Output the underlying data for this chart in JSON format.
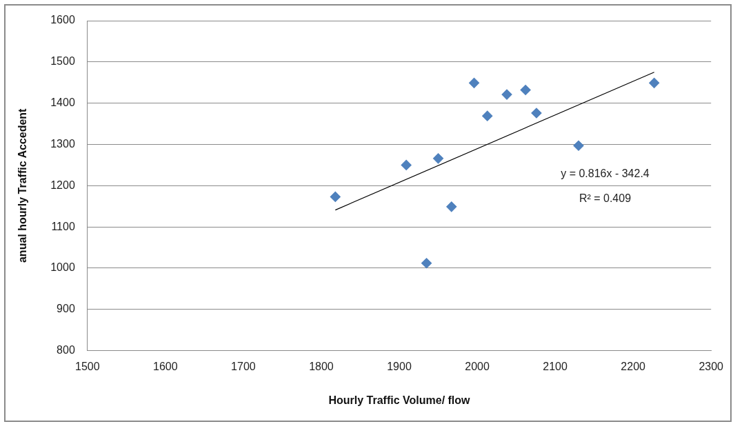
{
  "chart_data": {
    "type": "scatter",
    "xlabel": "Hourly Traffic Volume/ flow",
    "ylabel": "anual hourly Traffic Accedent",
    "xlim": [
      1500,
      2300
    ],
    "xticks": [
      1500,
      1600,
      1700,
      1800,
      1900,
      2000,
      2100,
      2200,
      2300
    ],
    "ylim": [
      800,
      1600
    ],
    "yticks": [
      800,
      900,
      1000,
      1100,
      1200,
      1300,
      1400,
      1500,
      1600
    ],
    "grid": "y",
    "legend": false,
    "marker": "diamond",
    "series": [
      {
        "color": "#4f81bd",
        "x": [
          1818,
          1909,
          1935,
          1950,
          1967,
          1996,
          2013,
          2038,
          2062,
          2076,
          2130,
          2227
        ],
        "values": [
          1173,
          1250,
          1012,
          1266,
          1149,
          1449,
          1369,
          1421,
          1432,
          1376,
          1297,
          1449
        ]
      },
      {
        "type": "line",
        "color": "#000000",
        "marker": "none",
        "line_style": "solid",
        "x": [
          1818,
          2227
        ],
        "values": [
          1141,
          1475
        ]
      }
    ],
    "annotations": [
      "y = 0.816x - 342.4",
      "R² = 0.409"
    ]
  }
}
